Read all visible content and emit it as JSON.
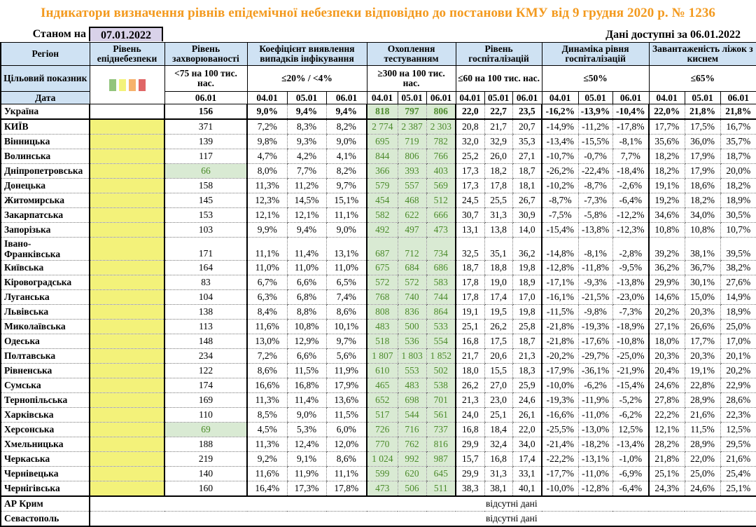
{
  "title": "Індикатори визначення рівнів епідемічної небезпеки відповідно до постанови КМУ від 9 грудня 2020 р. № 1236",
  "as_of_label": "Станом на",
  "as_of_date": "07.01.2022",
  "available_label": "Дані доступні за  06.01.2022",
  "colors": {
    "green": "#93c47d",
    "yellow": "#f3f27a",
    "orange": "#f6b26b",
    "red": "#e06666"
  },
  "headers": {
    "region": "Регіон",
    "level": "Рівень епіднебезпеки",
    "incidence": "Рівень захворюваності",
    "coef": "Коефіцієнт виявлення випадків інфікування",
    "testing": "Охоплення тестуванням",
    "hosp": "Рівень госпіталізацій",
    "dyn": "Динаміка рівня госпіталізацій",
    "beds": "Завантаженість ліжок з киснем"
  },
  "targets": {
    "label": "Цільовий показник",
    "incidence": "<75 на 100 тис. нас.",
    "coef": "≤20% / <4%",
    "testing": "≥300 на 100 тис. нас.",
    "hosp": "≤60 на 100 тис. нас.",
    "dyn": "≤50%",
    "beds": "≤65%"
  },
  "date_row": {
    "label": "Дата",
    "incidence": "06.01",
    "d1": "04.01",
    "d2": "05.01",
    "d3": "06.01"
  },
  "rows": [
    {
      "name": "Україна",
      "inc": "156",
      "coef": [
        "9,0%",
        "9,4%",
        "9,4%"
      ],
      "test": [
        "818",
        "797",
        "806"
      ],
      "hosp": [
        "22,0",
        "22,7",
        "23,5"
      ],
      "dyn": [
        "-16,2%",
        "-13,9%",
        "-10,4%"
      ],
      "beds": [
        "22,0%",
        "21,8%",
        "21,8%"
      ]
    },
    {
      "name": "КИЇВ",
      "inc": "371",
      "coef": [
        "7,2%",
        "8,3%",
        "8,2%"
      ],
      "test": [
        "2 774",
        "2 387",
        "2 303"
      ],
      "hosp": [
        "20,8",
        "21,7",
        "20,7"
      ],
      "dyn": [
        "-14,9%",
        "-11,2%",
        "-17,8%"
      ],
      "beds": [
        "17,7%",
        "17,5%",
        "16,7%"
      ]
    },
    {
      "name": "Вінницька",
      "inc": "139",
      "coef": [
        "9,8%",
        "9,3%",
        "9,0%"
      ],
      "test": [
        "695",
        "719",
        "782"
      ],
      "hosp": [
        "32,0",
        "32,9",
        "35,3"
      ],
      "dyn": [
        "-13,4%",
        "-15,5%",
        "-8,1%"
      ],
      "beds": [
        "35,6%",
        "36,0%",
        "35,7%"
      ]
    },
    {
      "name": "Волинська",
      "inc": "117",
      "coef": [
        "4,7%",
        "4,2%",
        "4,1%"
      ],
      "test": [
        "844",
        "806",
        "766"
      ],
      "hosp": [
        "25,2",
        "26,0",
        "27,1"
      ],
      "dyn": [
        "-10,7%",
        "-0,7%",
        "7,7%"
      ],
      "beds": [
        "18,2%",
        "17,9%",
        "18,7%"
      ]
    },
    {
      "name": "Дніпропетровська",
      "inc": "66",
      "inc_green": true,
      "coef": [
        "8,0%",
        "7,7%",
        "8,2%"
      ],
      "test": [
        "366",
        "393",
        "403"
      ],
      "hosp": [
        "17,3",
        "18,2",
        "18,7"
      ],
      "dyn": [
        "-26,2%",
        "-22,4%",
        "-18,4%"
      ],
      "beds": [
        "18,2%",
        "17,9%",
        "20,0%"
      ]
    },
    {
      "name": "Донецька",
      "inc": "158",
      "coef": [
        "11,3%",
        "11,2%",
        "9,7%"
      ],
      "test": [
        "579",
        "557",
        "569"
      ],
      "hosp": [
        "17,3",
        "17,8",
        "18,1"
      ],
      "dyn": [
        "-10,2%",
        "-8,7%",
        "-2,6%"
      ],
      "beds": [
        "19,1%",
        "18,6%",
        "18,2%"
      ]
    },
    {
      "name": "Житомирська",
      "inc": "145",
      "coef": [
        "12,3%",
        "14,5%",
        "15,1%"
      ],
      "test": [
        "454",
        "468",
        "512"
      ],
      "hosp": [
        "24,5",
        "25,5",
        "26,7"
      ],
      "dyn": [
        "-8,7%",
        "-7,3%",
        "-6,4%"
      ],
      "beds": [
        "19,2%",
        "18,2%",
        "18,9%"
      ]
    },
    {
      "name": "Закарпатська",
      "inc": "153",
      "coef": [
        "12,1%",
        "12,1%",
        "11,1%"
      ],
      "test": [
        "582",
        "622",
        "666"
      ],
      "hosp": [
        "30,7",
        "31,3",
        "30,9"
      ],
      "dyn": [
        "-7,5%",
        "-5,8%",
        "-12,2%"
      ],
      "beds": [
        "34,6%",
        "34,0%",
        "30,5%"
      ]
    },
    {
      "name": "Запорізька",
      "inc": "103",
      "coef": [
        "9,9%",
        "9,4%",
        "9,0%"
      ],
      "test": [
        "492",
        "497",
        "473"
      ],
      "hosp": [
        "13,1",
        "13,8",
        "14,0"
      ],
      "dyn": [
        "-15,4%",
        "-13,8%",
        "-12,3%"
      ],
      "beds": [
        "10,8%",
        "10,8%",
        "10,7%"
      ]
    },
    {
      "name": "Івано-Франківська",
      "inc": "171",
      "coef": [
        "11,1%",
        "11,4%",
        "13,1%"
      ],
      "test": [
        "687",
        "712",
        "734"
      ],
      "hosp": [
        "32,5",
        "35,1",
        "36,2"
      ],
      "dyn": [
        "-14,8%",
        "-8,1%",
        "-2,8%"
      ],
      "beds": [
        "39,2%",
        "38,1%",
        "39,5%"
      ]
    },
    {
      "name": "Київська",
      "inc": "164",
      "coef": [
        "11,0%",
        "11,0%",
        "11,0%"
      ],
      "test": [
        "675",
        "684",
        "686"
      ],
      "hosp": [
        "18,7",
        "18,8",
        "19,8"
      ],
      "dyn": [
        "-12,8%",
        "-11,8%",
        "-9,5%"
      ],
      "beds": [
        "36,2%",
        "36,7%",
        "38,2%"
      ]
    },
    {
      "name": "Кіровоградська",
      "inc": "83",
      "coef": [
        "6,7%",
        "6,6%",
        "6,5%"
      ],
      "test": [
        "572",
        "572",
        "583"
      ],
      "hosp": [
        "17,8",
        "19,0",
        "18,9"
      ],
      "dyn": [
        "-17,1%",
        "-9,3%",
        "-13,8%"
      ],
      "beds": [
        "29,9%",
        "30,1%",
        "27,6%"
      ]
    },
    {
      "name": "Луганська",
      "inc": "104",
      "coef": [
        "6,3%",
        "6,8%",
        "7,4%"
      ],
      "test": [
        "768",
        "740",
        "744"
      ],
      "hosp": [
        "17,8",
        "17,4",
        "17,0"
      ],
      "dyn": [
        "-16,1%",
        "-21,5%",
        "-23,0%"
      ],
      "beds": [
        "14,6%",
        "15,0%",
        "14,9%"
      ]
    },
    {
      "name": "Львівська",
      "inc": "138",
      "coef": [
        "8,4%",
        "8,8%",
        "8,6%"
      ],
      "test": [
        "808",
        "836",
        "864"
      ],
      "hosp": [
        "19,1",
        "19,5",
        "19,8"
      ],
      "dyn": [
        "-11,5%",
        "-9,8%",
        "-7,3%"
      ],
      "beds": [
        "20,2%",
        "20,3%",
        "18,9%"
      ]
    },
    {
      "name": "Миколаївська",
      "inc": "113",
      "coef": [
        "11,6%",
        "10,8%",
        "10,1%"
      ],
      "test": [
        "483",
        "500",
        "533"
      ],
      "hosp": [
        "25,1",
        "26,2",
        "25,8"
      ],
      "dyn": [
        "-21,8%",
        "-19,3%",
        "-18,9%"
      ],
      "beds": [
        "27,1%",
        "26,6%",
        "25,0%"
      ]
    },
    {
      "name": "Одеська",
      "inc": "148",
      "coef": [
        "13,0%",
        "12,9%",
        "9,7%"
      ],
      "test": [
        "518",
        "536",
        "554"
      ],
      "hosp": [
        "16,8",
        "17,5",
        "18,7"
      ],
      "dyn": [
        "-21,8%",
        "-17,6%",
        "-10,8%"
      ],
      "beds": [
        "18,0%",
        "17,7%",
        "17,0%"
      ]
    },
    {
      "name": "Полтавська",
      "inc": "234",
      "coef": [
        "7,2%",
        "6,6%",
        "5,6%"
      ],
      "test": [
        "1 807",
        "1 803",
        "1 852"
      ],
      "hosp": [
        "21,7",
        "20,6",
        "21,3"
      ],
      "dyn": [
        "-20,2%",
        "-29,7%",
        "-25,0%"
      ],
      "beds": [
        "20,3%",
        "20,3%",
        "20,1%"
      ]
    },
    {
      "name": "Рівненська",
      "inc": "122",
      "coef": [
        "8,6%",
        "11,5%",
        "11,9%"
      ],
      "test": [
        "610",
        "553",
        "502"
      ],
      "hosp": [
        "18,0",
        "15,5",
        "18,3"
      ],
      "dyn": [
        "-17,9%",
        "-36,1%",
        "-21,9%"
      ],
      "beds": [
        "20,4%",
        "19,1%",
        "20,2%"
      ]
    },
    {
      "name": "Сумська",
      "inc": "174",
      "coef": [
        "16,6%",
        "16,8%",
        "17,9%"
      ],
      "test": [
        "465",
        "483",
        "538"
      ],
      "hosp": [
        "26,2",
        "27,0",
        "25,9"
      ],
      "dyn": [
        "-10,0%",
        "-6,2%",
        "-15,4%"
      ],
      "beds": [
        "24,6%",
        "22,8%",
        "22,9%"
      ]
    },
    {
      "name": "Тернопільська",
      "inc": "169",
      "coef": [
        "11,3%",
        "11,4%",
        "13,6%"
      ],
      "test": [
        "652",
        "698",
        "701"
      ],
      "hosp": [
        "21,3",
        "23,0",
        "24,6"
      ],
      "dyn": [
        "-19,3%",
        "-11,9%",
        "-5,2%"
      ],
      "beds": [
        "27,8%",
        "28,9%",
        "28,6%"
      ]
    },
    {
      "name": "Харківська",
      "inc": "110",
      "coef": [
        "8,5%",
        "9,0%",
        "11,5%"
      ],
      "test": [
        "517",
        "544",
        "561"
      ],
      "hosp": [
        "24,0",
        "25,1",
        "26,1"
      ],
      "dyn": [
        "-16,6%",
        "-11,0%",
        "-6,2%"
      ],
      "beds": [
        "22,2%",
        "21,6%",
        "22,3%"
      ]
    },
    {
      "name": "Херсонська",
      "inc": "69",
      "inc_green": true,
      "coef": [
        "4,5%",
        "5,3%",
        "6,0%"
      ],
      "test": [
        "726",
        "716",
        "737"
      ],
      "hosp": [
        "16,8",
        "18,4",
        "22,0"
      ],
      "dyn": [
        "-25,5%",
        "-13,0%",
        "12,5%"
      ],
      "beds": [
        "12,1%",
        "11,5%",
        "12,5%"
      ]
    },
    {
      "name": "Хмельницька",
      "inc": "188",
      "coef": [
        "11,3%",
        "12,4%",
        "12,0%"
      ],
      "test": [
        "770",
        "762",
        "816"
      ],
      "hosp": [
        "29,9",
        "32,4",
        "34,0"
      ],
      "dyn": [
        "-21,4%",
        "-18,2%",
        "-13,4%"
      ],
      "beds": [
        "28,2%",
        "28,9%",
        "29,5%"
      ]
    },
    {
      "name": "Черкаська",
      "inc": "219",
      "coef": [
        "9,2%",
        "9,1%",
        "8,6%"
      ],
      "test": [
        "1 024",
        "992",
        "987"
      ],
      "hosp": [
        "15,7",
        "16,8",
        "17,4"
      ],
      "dyn": [
        "-22,2%",
        "-13,1%",
        "-1,0%"
      ],
      "beds": [
        "21,8%",
        "22,0%",
        "21,6%"
      ]
    },
    {
      "name": "Чернівецька",
      "inc": "140",
      "coef": [
        "11,6%",
        "11,9%",
        "11,1%"
      ],
      "test": [
        "599",
        "620",
        "645"
      ],
      "hosp": [
        "29,9",
        "31,3",
        "33,1"
      ],
      "dyn": [
        "-17,7%",
        "-11,0%",
        "-6,9%"
      ],
      "beds": [
        "25,1%",
        "25,0%",
        "25,4%"
      ]
    },
    {
      "name": "Чернігівська",
      "inc": "160",
      "coef": [
        "16,4%",
        "17,3%",
        "17,8%"
      ],
      "test": [
        "473",
        "506",
        "511"
      ],
      "hosp": [
        "38,3",
        "38,1",
        "40,1"
      ],
      "dyn": [
        "-10,0%",
        "-12,8%",
        "-6,4%"
      ],
      "beds": [
        "24,3%",
        "24,6%",
        "25,1%"
      ]
    }
  ],
  "no_data_rows": [
    {
      "name": "АР Крим",
      "text": "відсутні дані"
    },
    {
      "name": "Севастополь",
      "text": "відсутні дані"
    }
  ]
}
